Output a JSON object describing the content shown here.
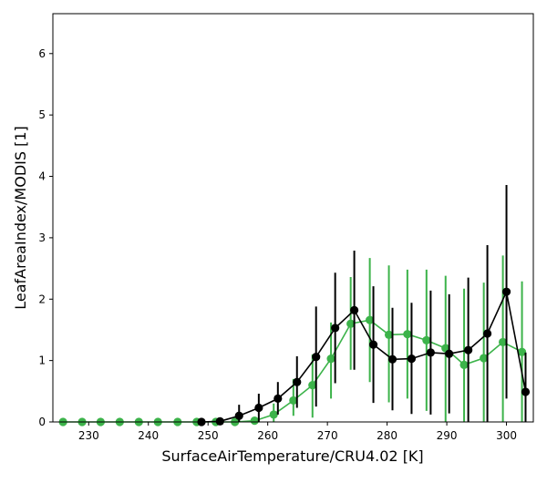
{
  "chart_data": {
    "type": "line",
    "xlabel": "SurfaceAirTemperature/CRU4.02 [K]",
    "ylabel": "LeafAreaIndex/MODIS [1]",
    "xlim": [
      224,
      304.5
    ],
    "ylim": [
      0,
      6.65
    ],
    "xticks": [
      230,
      240,
      250,
      260,
      270,
      280,
      290,
      300
    ],
    "yticks": [
      0,
      1,
      2,
      3,
      4,
      5,
      6
    ],
    "grid": false,
    "legend": "none",
    "series": [
      {
        "color": "#3cb34a",
        "points": [
          {
            "x": 225.7,
            "y": 0.0,
            "lo": 0.0,
            "hi": 0.0
          },
          {
            "x": 228.9,
            "y": 0.0,
            "lo": 0.0,
            "hi": 0.0
          },
          {
            "x": 232.0,
            "y": 0.0,
            "lo": 0.0,
            "hi": 0.0
          },
          {
            "x": 235.2,
            "y": 0.0,
            "lo": 0.0,
            "hi": 0.0
          },
          {
            "x": 238.4,
            "y": 0.0,
            "lo": 0.0,
            "hi": 0.0
          },
          {
            "x": 241.6,
            "y": 0.0,
            "lo": 0.0,
            "hi": 0.0
          },
          {
            "x": 244.9,
            "y": 0.0,
            "lo": 0.0,
            "hi": 0.0
          },
          {
            "x": 248.1,
            "y": 0.0,
            "lo": 0.0,
            "hi": 0.0
          },
          {
            "x": 251.3,
            "y": 0.0,
            "lo": 0.0,
            "hi": 0.0
          },
          {
            "x": 254.5,
            "y": 0.0,
            "lo": 0.0,
            "hi": 0.03
          },
          {
            "x": 257.8,
            "y": 0.02,
            "lo": 0.0,
            "hi": 0.08
          },
          {
            "x": 261.0,
            "y": 0.12,
            "lo": 0.0,
            "hi": 0.3
          },
          {
            "x": 264.3,
            "y": 0.35,
            "lo": 0.1,
            "hi": 0.7
          },
          {
            "x": 267.5,
            "y": 0.6,
            "lo": 0.07,
            "hi": 1.1
          },
          {
            "x": 270.6,
            "y": 1.03,
            "lo": 0.38,
            "hi": 1.62
          },
          {
            "x": 273.9,
            "y": 1.6,
            "lo": 0.85,
            "hi": 2.36
          },
          {
            "x": 277.1,
            "y": 1.66,
            "lo": 0.65,
            "hi": 2.67
          },
          {
            "x": 280.3,
            "y": 1.42,
            "lo": 0.32,
            "hi": 2.55
          },
          {
            "x": 283.4,
            "y": 1.43,
            "lo": 0.38,
            "hi": 2.48
          },
          {
            "x": 286.6,
            "y": 1.33,
            "lo": 0.18,
            "hi": 2.48
          },
          {
            "x": 289.8,
            "y": 1.2,
            "lo": 0.0,
            "hi": 2.38
          },
          {
            "x": 292.9,
            "y": 0.93,
            "lo": 0.0,
            "hi": 2.17
          },
          {
            "x": 296.2,
            "y": 1.04,
            "lo": 0.0,
            "hi": 2.27
          },
          {
            "x": 299.4,
            "y": 1.3,
            "lo": 0.0,
            "hi": 2.71
          },
          {
            "x": 302.6,
            "y": 1.14,
            "lo": 0.0,
            "hi": 2.29
          }
        ]
      },
      {
        "color": "#000000",
        "points": [
          {
            "x": 248.9,
            "y": 0.0,
            "lo": 0.0,
            "hi": 0.0
          },
          {
            "x": 252.0,
            "y": 0.01,
            "lo": 0.0,
            "hi": 0.03
          },
          {
            "x": 255.2,
            "y": 0.1,
            "lo": 0.0,
            "hi": 0.28
          },
          {
            "x": 258.5,
            "y": 0.23,
            "lo": 0.0,
            "hi": 0.46
          },
          {
            "x": 261.7,
            "y": 0.38,
            "lo": 0.12,
            "hi": 0.65
          },
          {
            "x": 264.9,
            "y": 0.65,
            "lo": 0.23,
            "hi": 1.07
          },
          {
            "x": 268.1,
            "y": 1.06,
            "lo": 0.25,
            "hi": 1.88
          },
          {
            "x": 271.3,
            "y": 1.53,
            "lo": 0.63,
            "hi": 2.43
          },
          {
            "x": 274.5,
            "y": 1.82,
            "lo": 0.85,
            "hi": 2.79
          },
          {
            "x": 277.7,
            "y": 1.26,
            "lo": 0.31,
            "hi": 2.21
          },
          {
            "x": 280.9,
            "y": 1.02,
            "lo": 0.19,
            "hi": 1.86
          },
          {
            "x": 284.1,
            "y": 1.03,
            "lo": 0.13,
            "hi": 1.94
          },
          {
            "x": 287.3,
            "y": 1.13,
            "lo": 0.12,
            "hi": 2.14
          },
          {
            "x": 290.4,
            "y": 1.11,
            "lo": 0.14,
            "hi": 2.08
          },
          {
            "x": 293.6,
            "y": 1.17,
            "lo": 0.0,
            "hi": 2.35
          },
          {
            "x": 296.8,
            "y": 1.44,
            "lo": 0.0,
            "hi": 2.88
          },
          {
            "x": 300.0,
            "y": 2.12,
            "lo": 0.38,
            "hi": 3.86
          },
          {
            "x": 303.2,
            "y": 0.49,
            "lo": 0.0,
            "hi": 1.13
          }
        ]
      }
    ]
  }
}
